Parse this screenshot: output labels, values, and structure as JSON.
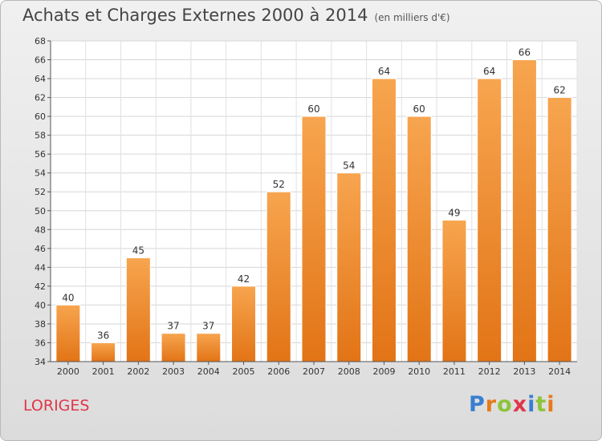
{
  "header": {
    "title": "Achats et Charges Externes 2000 à 2014",
    "subtitle": "(en milliers d'€)"
  },
  "footer": {
    "commune": "LORIGES",
    "logo": "Proxiti"
  },
  "colors": {
    "bar_top": "#f7a54f",
    "bar_bottom": "#e27416",
    "commune_text": "#e0364a",
    "logo_letters": [
      "#3a7fd0",
      "#e67a1a",
      "#8cc43a",
      "#e0364a",
      "#3a7fd0",
      "#8cc43a",
      "#e67a1a"
    ]
  },
  "chart_data": {
    "type": "bar",
    "title": "Achats et Charges Externes 2000 à 2014",
    "subtitle": "(en milliers d'€)",
    "categories": [
      "2000",
      "2001",
      "2002",
      "2003",
      "2004",
      "2005",
      "2006",
      "2007",
      "2008",
      "2009",
      "2010",
      "2011",
      "2012",
      "2013",
      "2014"
    ],
    "values": [
      40,
      36,
      45,
      37,
      37,
      42,
      52,
      60,
      54,
      64,
      60,
      49,
      64,
      66,
      62
    ],
    "ylim": [
      34,
      68
    ],
    "yticks": [
      34,
      36,
      38,
      40,
      42,
      44,
      46,
      48,
      50,
      52,
      54,
      56,
      58,
      60,
      62,
      64,
      66,
      68
    ],
    "grid": true,
    "data_labels": true
  }
}
